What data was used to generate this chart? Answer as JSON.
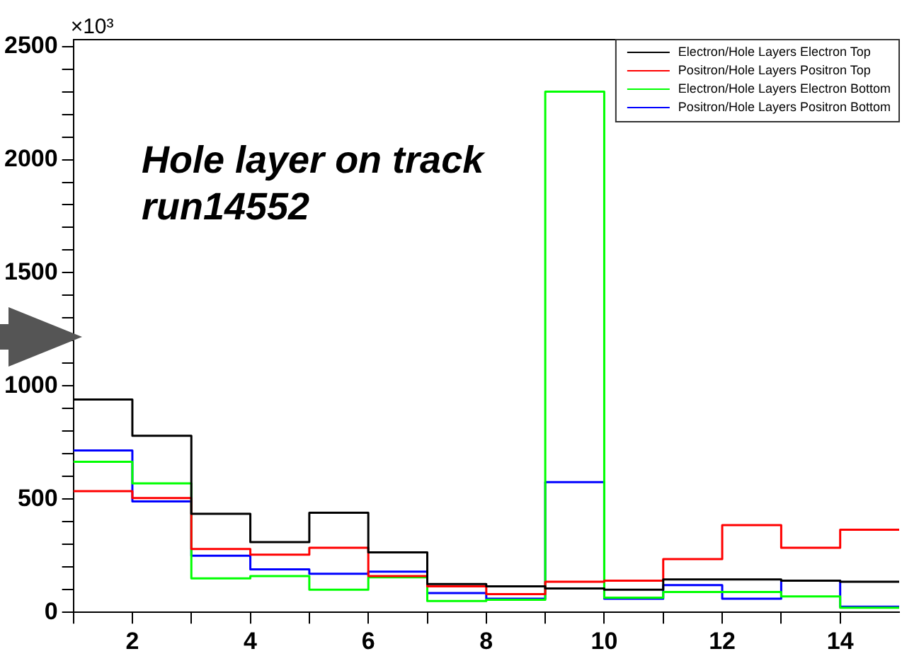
{
  "chart_data": {
    "type": "histogram",
    "ylabel": "×10³",
    "annotations": [
      "Hole layer on track",
      "run14552"
    ],
    "bins": [
      1,
      2,
      3,
      4,
      5,
      6,
      7,
      8,
      9,
      10,
      11,
      12,
      13,
      14,
      15
    ],
    "series": [
      {
        "name": "Electron/Hole Layers Electron Top",
        "color": "#000000",
        "values": [
          940,
          780,
          435,
          310,
          440,
          265,
          125,
          115,
          105,
          100,
          145,
          145,
          140,
          135
        ]
      },
      {
        "name": "Positron/Hole Layers Positron Top",
        "color": "#ff0000",
        "values": [
          535,
          505,
          280,
          255,
          285,
          160,
          115,
          80,
          135,
          140,
          235,
          385,
          285,
          365
        ]
      },
      {
        "name": "Electron/Hole Layers Electron Bottom",
        "color": "#00ff00",
        "values": [
          665,
          570,
          150,
          160,
          100,
          155,
          50,
          55,
          2300,
          65,
          90,
          90,
          70,
          20
        ]
      },
      {
        "name": "Positron/Hole Layers Positron Bottom",
        "color": "#0000ff",
        "values": [
          715,
          490,
          250,
          190,
          170,
          180,
          85,
          60,
          575,
          60,
          120,
          60,
          140,
          25
        ]
      }
    ],
    "xlim": [
      1,
      15
    ],
    "xticks": [
      {
        "value": 1,
        "label": null
      },
      2,
      {
        "value": 3,
        "label": null
      },
      4,
      {
        "value": 5,
        "label": null
      },
      6,
      {
        "value": 7,
        "label": null
      },
      8,
      {
        "value": 9,
        "label": null
      },
      10,
      {
        "value": 11,
        "label": null
      },
      12,
      {
        "value": 13,
        "label": null
      },
      14
    ],
    "ylim": [
      0,
      2530
    ],
    "yticks": [
      0,
      {
        "value": 100,
        "label": null
      },
      {
        "value": 200,
        "label": null
      },
      {
        "value": 300,
        "label": null
      },
      {
        "value": 400,
        "label": null
      },
      500,
      {
        "value": 600,
        "label": null
      },
      {
        "value": 700,
        "label": null
      },
      {
        "value": 800,
        "label": null
      },
      {
        "value": 900,
        "label": null
      },
      1000,
      {
        "value": 1100,
        "label": null
      },
      {
        "value": 1200,
        "label": null
      },
      {
        "value": 1300,
        "label": null
      },
      {
        "value": 1400,
        "label": null
      },
      1500,
      {
        "value": 1600,
        "label": null
      },
      {
        "value": 1700,
        "label": null
      },
      {
        "value": 1800,
        "label": null
      },
      {
        "value": 1900,
        "label": null
      },
      2000,
      {
        "value": 2100,
        "label": null
      },
      {
        "value": 2200,
        "label": null
      },
      {
        "value": 2300,
        "label": null
      },
      {
        "value": 2400,
        "label": null
      },
      2500
    ],
    "grid": false,
    "legend": "top right"
  }
}
